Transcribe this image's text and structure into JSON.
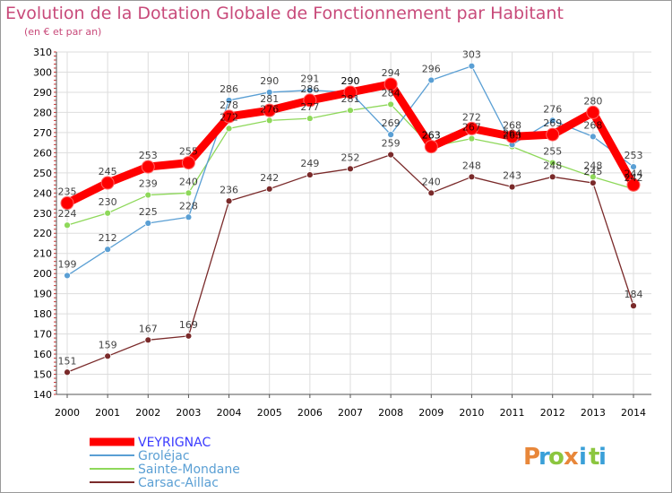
{
  "header": {
    "title": "Evolution de la Dotation Globale de Fonctionnement par Habitant",
    "subtitle": "(en € et par an)"
  },
  "brand": {
    "letters": [
      "P",
      "r",
      "o",
      "x",
      "i",
      "t",
      "i"
    ],
    "colors": [
      "#e8873a",
      "#3aa0d8",
      "#8cc63f",
      "#e8873a",
      "#3aa0d8",
      "#8cc63f",
      "#3aa0d8"
    ]
  },
  "chart_data": {
    "type": "line",
    "title": "Evolution de la Dotation Globale de Fonctionnement par Habitant",
    "subtitle": "(en € et par an)",
    "categories": [
      "2000",
      "2001",
      "2002",
      "2003",
      "2004",
      "2005",
      "2006",
      "2007",
      "2008",
      "2009",
      "2010",
      "2011",
      "2012",
      "2013",
      "2014"
    ],
    "ylim": [
      140,
      310
    ],
    "yticks": [
      140,
      150,
      160,
      170,
      180,
      190,
      200,
      210,
      220,
      230,
      240,
      250,
      260,
      270,
      280,
      290,
      300,
      310
    ],
    "grid": true,
    "legend_position": "bottom-left",
    "series": [
      {
        "name": "VEYRIGNAC",
        "color": "#ff0000",
        "text_color": "#3a3aff",
        "values": [
          235,
          245,
          253,
          255,
          278,
          281,
          286,
          290,
          294,
          263,
          272,
          268,
          269,
          280,
          244
        ],
        "labels": [
          "235",
          "245",
          "253",
          "255",
          "278",
          "281",
          "286",
          "290",
          "294",
          "263",
          "272",
          "268",
          "269",
          "280",
          "244"
        ]
      },
      {
        "name": "Groléjac",
        "color": "#5a9fd4",
        "text_color": "#5a9fd4",
        "values": [
          199,
          212,
          225,
          228,
          286,
          290,
          291,
          290,
          269,
          296,
          303,
          264,
          276,
          268,
          253
        ],
        "labels": [
          "199",
          "212",
          "225",
          "228",
          "286",
          "290",
          "291",
          "290",
          "269",
          "296",
          "303",
          "264",
          "276",
          "268",
          "253"
        ]
      },
      {
        "name": "Sainte-Mondane",
        "color": "#8ed85a",
        "text_color": "#5a9fd4",
        "values": [
          224,
          230,
          239,
          240,
          272,
          276,
          277,
          281,
          284,
          263,
          267,
          263,
          255,
          248,
          242
        ],
        "labels": [
          "224",
          "230",
          "239",
          "240",
          "272",
          "276",
          "277",
          "281",
          "284",
          "263",
          "267",
          "263",
          "255",
          "248",
          "242"
        ]
      },
      {
        "name": "Carsac-Aillac",
        "color": "#7a2a2a",
        "text_color": "#5a9fd4",
        "values": [
          151,
          159,
          167,
          169,
          236,
          242,
          249,
          252,
          259,
          240,
          248,
          243,
          248,
          245,
          184
        ],
        "labels": [
          "151",
          "159",
          "167",
          "169",
          "236",
          "242",
          "249",
          "252",
          "259",
          "240",
          "248",
          "243",
          "248",
          "245",
          "184"
        ]
      }
    ]
  }
}
